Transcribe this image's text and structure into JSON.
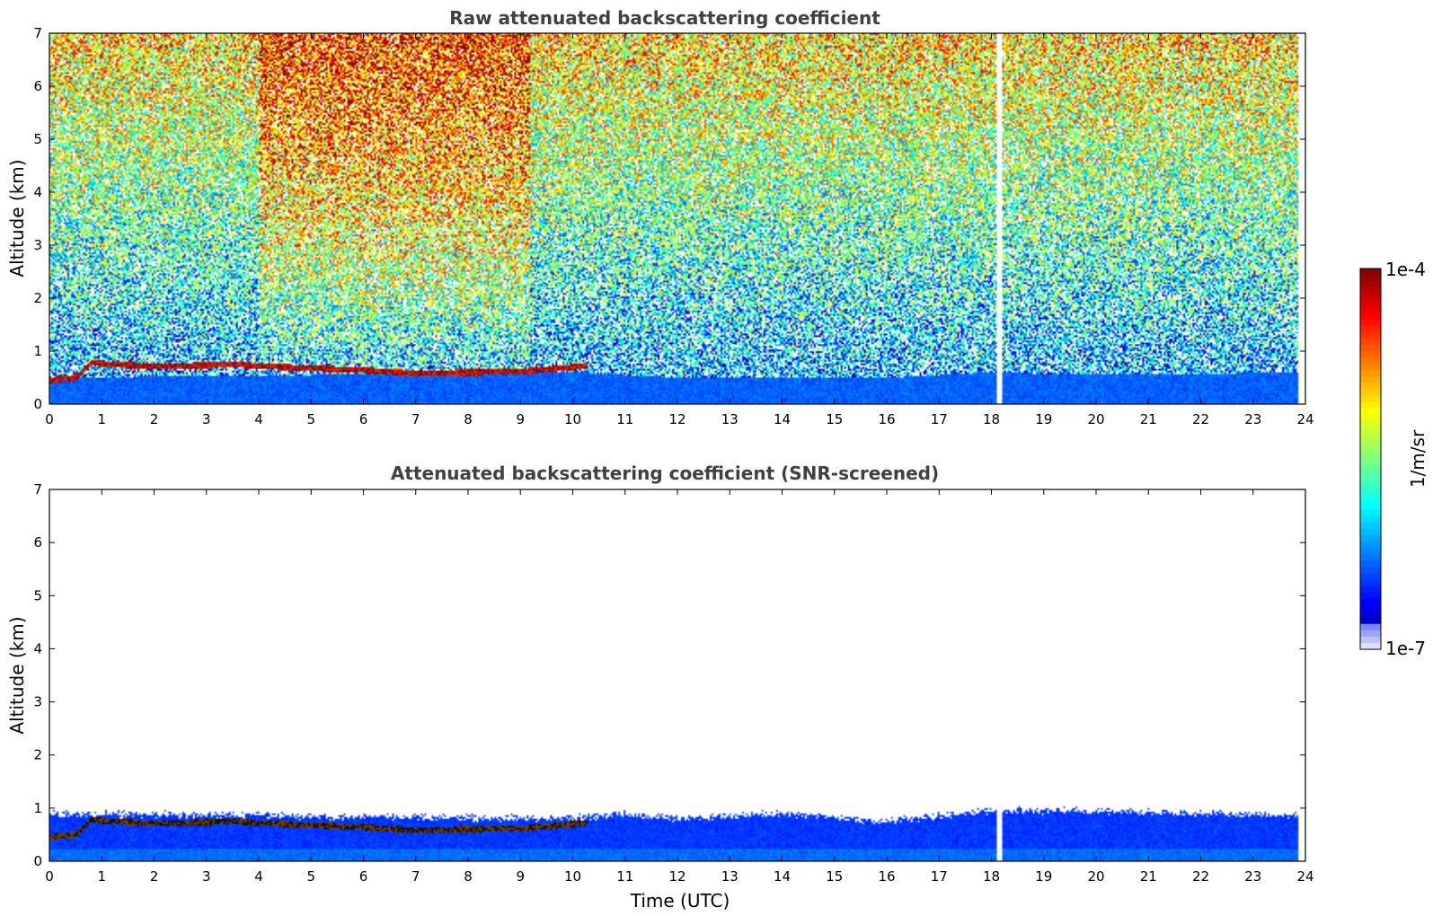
{
  "chart_data": [
    {
      "type": "heatmap",
      "title": "Raw attenuated backscattering coefficient",
      "xlabel": "",
      "ylabel": "Altitude (km)",
      "xlim": [
        0,
        24
      ],
      "ylim": [
        0,
        7
      ],
      "x_ticks": [
        "0",
        "1",
        "2",
        "3",
        "4",
        "5",
        "6",
        "7",
        "8",
        "9",
        "10",
        "11",
        "12",
        "13",
        "14",
        "15",
        "16",
        "17",
        "18",
        "19",
        "20",
        "21",
        "22",
        "23",
        "24"
      ],
      "y_ticks": [
        "0",
        "1",
        "2",
        "3",
        "4",
        "5",
        "6",
        "7"
      ],
      "features": {
        "cloud_layer": [
          [
            0,
            0.45
          ],
          [
            0.5,
            0.5
          ],
          [
            0.8,
            0.78
          ],
          [
            1.2,
            0.75
          ],
          [
            1.8,
            0.72
          ],
          [
            2.5,
            0.72
          ],
          [
            3.5,
            0.75
          ],
          [
            4,
            0.72
          ],
          [
            5,
            0.68
          ],
          [
            6,
            0.64
          ],
          [
            7,
            0.58
          ],
          [
            8,
            0.6
          ],
          [
            9,
            0.62
          ],
          [
            9.5,
            0.65
          ],
          [
            10.2,
            0.72
          ]
        ],
        "boundary_layer_top_km": [
          [
            0,
            0.5
          ],
          [
            10,
            0.6
          ],
          [
            12,
            0.5
          ],
          [
            16,
            0.5
          ],
          [
            18,
            0.6
          ],
          [
            20,
            0.55
          ],
          [
            24,
            0.6
          ]
        ],
        "data_gap_time": 18.15
      }
    },
    {
      "type": "heatmap",
      "title": "Attenuated backscattering coefficient (SNR-screened)",
      "xlabel": "Time (UTC)",
      "ylabel": "Altitude (km)",
      "xlim": [
        0,
        24
      ],
      "ylim": [
        0,
        7
      ],
      "x_ticks": [
        "0",
        "1",
        "2",
        "3",
        "4",
        "5",
        "6",
        "7",
        "8",
        "9",
        "10",
        "11",
        "12",
        "13",
        "14",
        "15",
        "16",
        "17",
        "18",
        "19",
        "20",
        "21",
        "22",
        "23",
        "24"
      ],
      "y_ticks": [
        "0",
        "1",
        "2",
        "3",
        "4",
        "5",
        "6",
        "7"
      ],
      "features": {
        "cloud_layer": [
          [
            0,
            0.45
          ],
          [
            0.5,
            0.5
          ],
          [
            0.8,
            0.78
          ],
          [
            1.2,
            0.75
          ],
          [
            1.8,
            0.72
          ],
          [
            2.5,
            0.72
          ],
          [
            3.5,
            0.75
          ],
          [
            4,
            0.72
          ],
          [
            5,
            0.68
          ],
          [
            6,
            0.64
          ],
          [
            7,
            0.58
          ],
          [
            8,
            0.6
          ],
          [
            9,
            0.62
          ],
          [
            9.5,
            0.65
          ],
          [
            10.2,
            0.72
          ]
        ],
        "screened_top_km": [
          [
            0,
            0.9
          ],
          [
            10,
            0.8
          ],
          [
            11,
            0.9
          ],
          [
            12,
            0.8
          ],
          [
            14,
            0.9
          ],
          [
            16,
            0.75
          ],
          [
            18,
            0.95
          ],
          [
            20,
            0.95
          ],
          [
            24,
            0.85
          ]
        ],
        "data_gap_time": 18.15
      }
    }
  ],
  "colorbar": {
    "max_label": "1e-4",
    "min_label": "1e-7",
    "unit_label": "1/m/sr",
    "colormap": "jet",
    "scale": "log"
  }
}
